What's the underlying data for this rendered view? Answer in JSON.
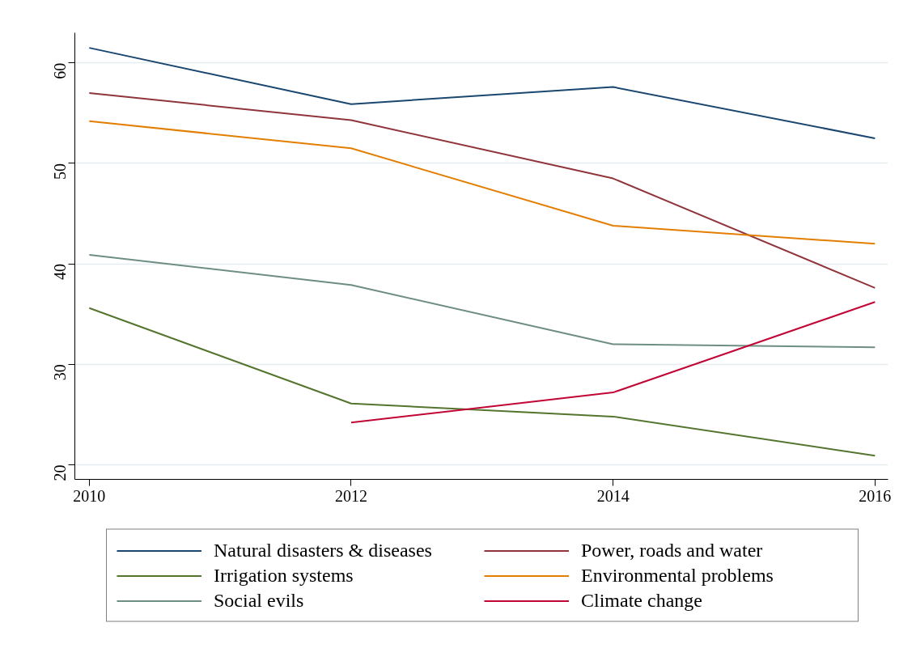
{
  "chart_data": {
    "type": "line",
    "x": [
      2010,
      2012,
      2014,
      2016
    ],
    "xlim": [
      2009.89,
      2016.1
    ],
    "xticks": [
      2010,
      2012,
      2014,
      2016
    ],
    "ylim": [
      18.55,
      63.0
    ],
    "yticks": [
      20,
      30,
      40,
      50,
      60
    ],
    "grid": "y",
    "legend": "bottom",
    "line_style": "solid",
    "marker": "none",
    "series": [
      {
        "name": "Natural disasters & diseases",
        "color": "#1a476f",
        "values": [
          61.5,
          55.9,
          57.6,
          52.5
        ]
      },
      {
        "name": "Power, roads and water",
        "color": "#90353b",
        "values": [
          57.0,
          54.3,
          48.5,
          37.6
        ]
      },
      {
        "name": "Irrigation systems",
        "color": "#55752f",
        "values": [
          35.6,
          26.1,
          24.8,
          20.9
        ]
      },
      {
        "name": "Environmental problems",
        "color": "#e37e00",
        "values": [
          54.2,
          51.5,
          43.8,
          42.0
        ]
      },
      {
        "name": "Social evils",
        "color": "#6e8e84",
        "values": [
          40.9,
          37.9,
          32.0,
          31.7
        ]
      },
      {
        "name": "Climate change",
        "color": "#c10534",
        "values": [
          null,
          24.2,
          27.2,
          36.2
        ]
      }
    ]
  }
}
